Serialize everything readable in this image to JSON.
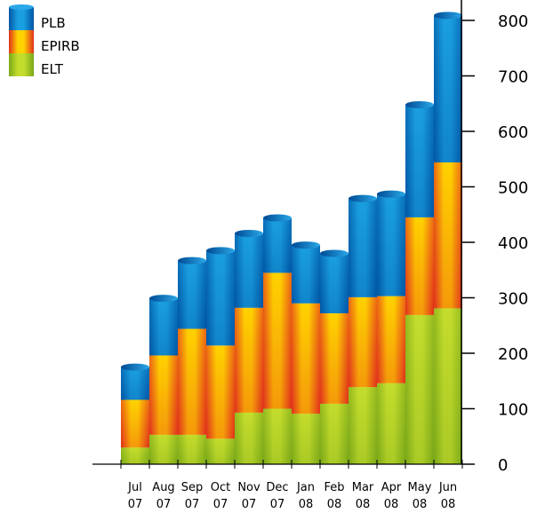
{
  "chart_data": {
    "type": "bar",
    "stacked": true,
    "style": "3d-cylinder",
    "categories": [
      [
        "Jul",
        "07"
      ],
      [
        "Aug",
        "07"
      ],
      [
        "Sep",
        "07"
      ],
      [
        "Oct",
        "07"
      ],
      [
        "Nov",
        "07"
      ],
      [
        "Dec",
        "07"
      ],
      [
        "Jan",
        "08"
      ],
      [
        "Feb",
        "08"
      ],
      [
        "Mar",
        "08"
      ],
      [
        "Apr",
        "08"
      ],
      [
        "May",
        "08"
      ],
      [
        "Jun",
        "08"
      ]
    ],
    "series": [
      {
        "name": "ELT",
        "values": [
          30,
          53,
          53,
          46,
          93,
          100,
          91,
          109,
          139,
          146,
          269,
          281
        ],
        "colors": {
          "dark": "#7aa818",
          "light": "#c4dc2c"
        }
      },
      {
        "name": "EPIRB",
        "values": [
          86,
          143,
          191,
          168,
          189,
          245,
          199,
          163,
          162,
          157,
          176,
          263
        ],
        "colors": {
          "dark": "#e0301c",
          "light": "#ffd200"
        }
      },
      {
        "name": "PLB",
        "values": [
          59,
          103,
          123,
          171,
          134,
          99,
          105,
          108,
          178,
          184,
          203,
          265
        ],
        "colors": {
          "dark": "#0055a4",
          "light": "#1a9fe0"
        }
      }
    ],
    "yaxis": {
      "position": "right",
      "ticks": [
        0,
        100,
        200,
        300,
        400,
        500,
        600,
        700,
        800
      ],
      "ylim": [
        0,
        800
      ]
    },
    "legend": {
      "position": "top-left",
      "order": [
        "PLB",
        "EPIRB",
        "ELT"
      ]
    },
    "grid": false,
    "title": "",
    "xlabel": "",
    "ylabel": ""
  }
}
